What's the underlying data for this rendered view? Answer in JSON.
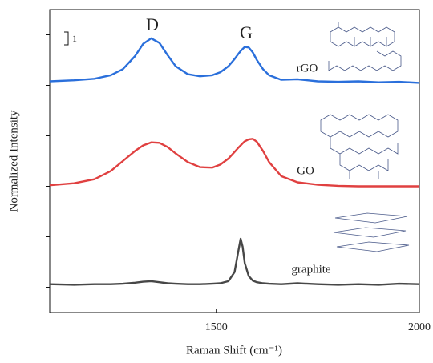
{
  "chart_data": {
    "type": "line",
    "x_label": "Raman Shift (cm⁻¹)",
    "y_label": "Normalized Intensity",
    "annotations": [
      "D",
      "G",
      "rGO",
      "GO",
      "graphite",
      "1"
    ],
    "x": [
      1090,
      1150,
      1200,
      1240,
      1270,
      1300,
      1320,
      1340,
      1360,
      1380,
      1400,
      1430,
      1460,
      1490,
      1510,
      1530,
      1545,
      1555,
      1560,
      1565,
      1570,
      1580,
      1590,
      1600,
      1615,
      1630,
      1660,
      1700,
      1750,
      1800,
      1850,
      1900,
      1950,
      2000
    ],
    "series": [
      {
        "name": "rGO",
        "color": "#2a6fdb",
        "values": [
          4.58,
          4.6,
          4.63,
          4.7,
          4.82,
          5.08,
          5.32,
          5.43,
          5.34,
          5.1,
          4.88,
          4.72,
          4.68,
          4.7,
          4.76,
          4.88,
          5.02,
          5.13,
          5.18,
          5.22,
          5.26,
          5.25,
          5.15,
          5.0,
          4.82,
          4.7,
          4.61,
          4.62,
          4.58,
          4.57,
          4.58,
          4.56,
          4.57,
          4.55
        ]
      },
      {
        "name": "GO",
        "color": "#e04040",
        "values": [
          2.52,
          2.56,
          2.64,
          2.8,
          3.0,
          3.2,
          3.31,
          3.37,
          3.36,
          3.28,
          3.15,
          2.98,
          2.88,
          2.87,
          2.93,
          3.05,
          3.18,
          3.27,
          3.31,
          3.35,
          3.39,
          3.43,
          3.44,
          3.38,
          3.2,
          2.98,
          2.7,
          2.58,
          2.53,
          2.51,
          2.5,
          2.5,
          2.5,
          2.5
        ]
      },
      {
        "name": "graphite",
        "color": "#474747",
        "values": [
          0.56,
          0.55,
          0.56,
          0.56,
          0.57,
          0.59,
          0.61,
          0.62,
          0.6,
          0.58,
          0.57,
          0.56,
          0.56,
          0.57,
          0.58,
          0.62,
          0.8,
          1.25,
          1.46,
          1.3,
          0.98,
          0.72,
          0.63,
          0.6,
          0.58,
          0.57,
          0.56,
          0.58,
          0.56,
          0.55,
          0.56,
          0.55,
          0.57,
          0.56
        ]
      }
    ],
    "xlim": [
      1090,
      2000
    ],
    "xticks": [
      1500,
      2000
    ],
    "ylim": [
      0,
      6
    ],
    "yticks": [
      0.5,
      1.5,
      2.5,
      3.5,
      4.5,
      5.5
    ]
  }
}
